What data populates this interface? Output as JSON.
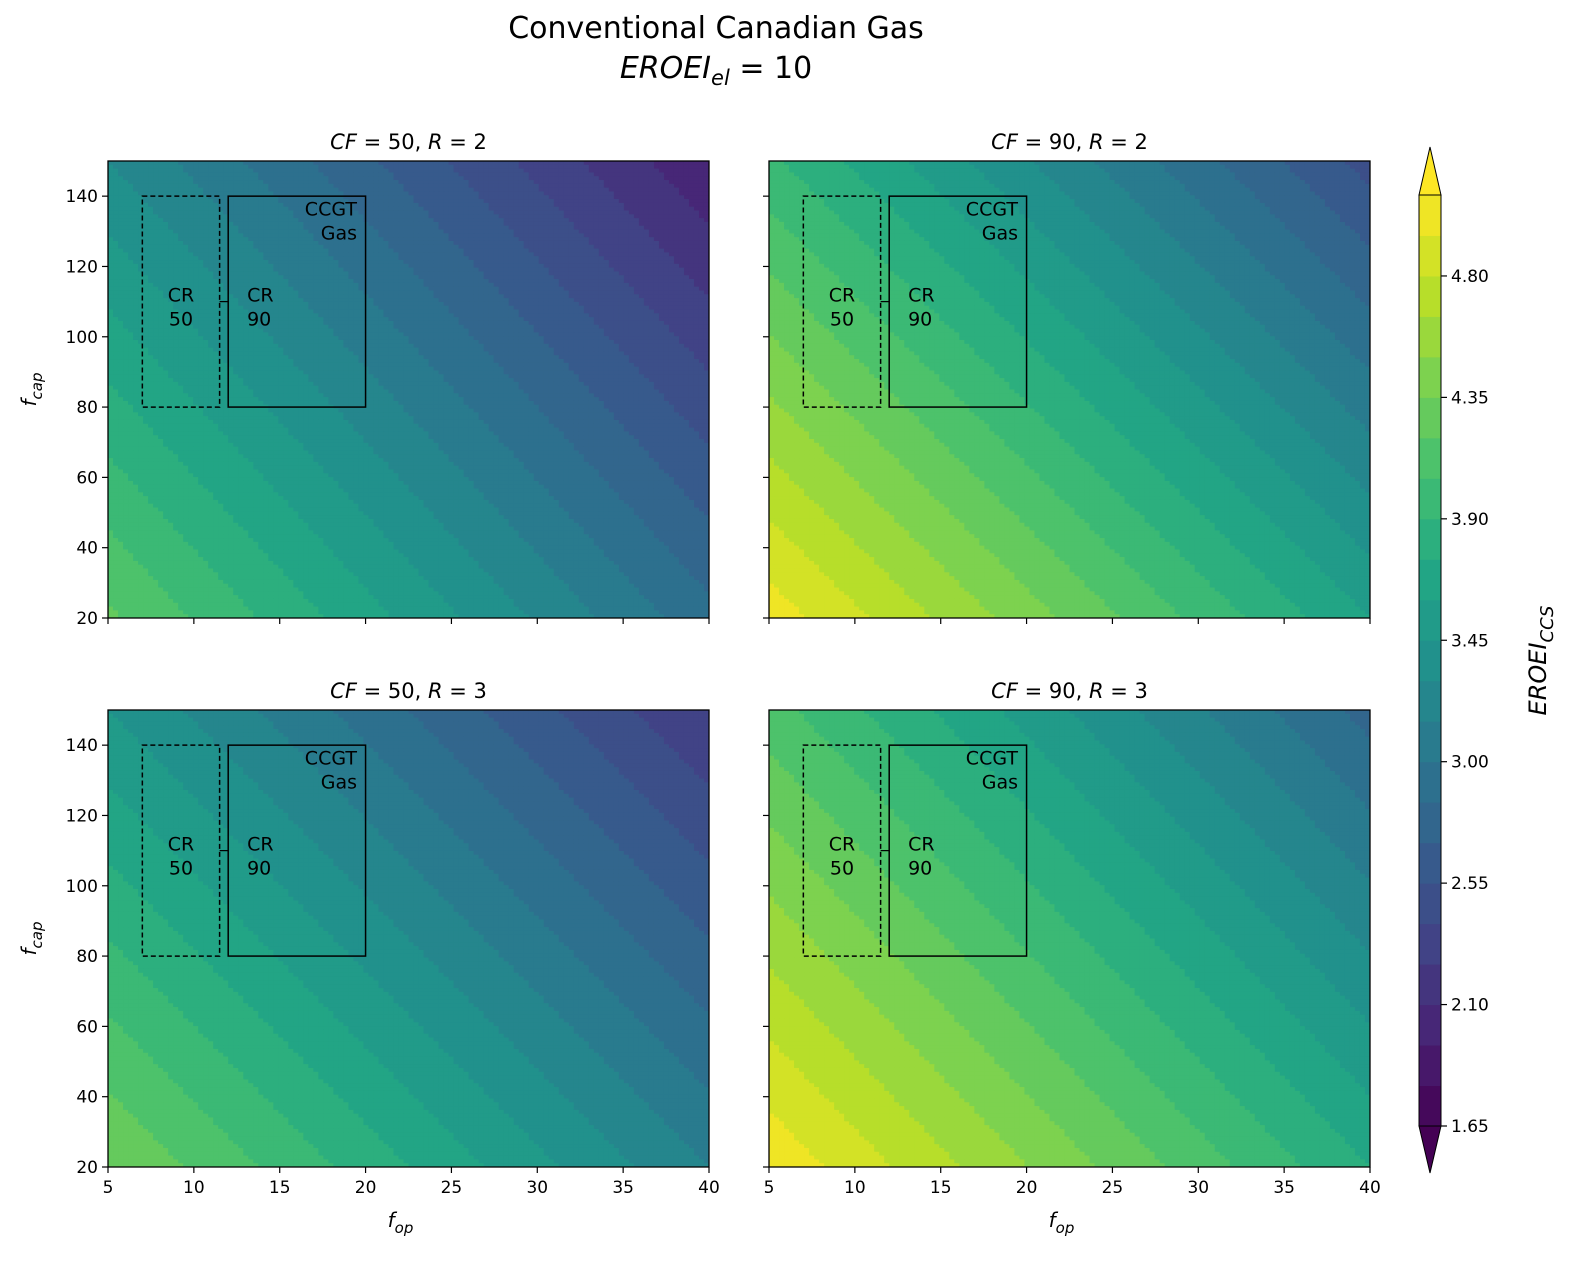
{
  "figure": {
    "title": "Conventional Canadian Gas",
    "subtitle_math": "EROEI",
    "subtitle_sub": "el",
    "subtitle_rest": " = 10"
  },
  "chart_data": {
    "type": "heatmap",
    "title": "Conventional Canadian Gas",
    "subtitle": "EROEI_el = 10",
    "xlabel": {
      "main": "f",
      "sub": "op"
    },
    "ylabel": {
      "main": "f",
      "sub": "cap"
    },
    "xlim": [
      5,
      40
    ],
    "ylim": [
      20,
      150
    ],
    "xticks": [
      5,
      10,
      15,
      20,
      25,
      30,
      35,
      40
    ],
    "yticks": [
      20,
      40,
      60,
      80,
      100,
      120,
      140
    ],
    "colorbar": {
      "label": {
        "main": "EROEI",
        "sub": "CCS"
      },
      "ticks": [
        "1.65",
        "2.10",
        "2.55",
        "3.00",
        "3.45",
        "3.90",
        "4.35",
        "4.80"
      ],
      "min": 1.65,
      "max": 5.1,
      "level_step": 0.15,
      "extend": "both",
      "colormap": "viridis"
    },
    "panels": [
      {
        "title_parts": [
          "CF",
          " = 50, ",
          "R",
          " = 2"
        ],
        "cf": 50,
        "r": 2,
        "corner_values": {
          "x5_y20": 4.23,
          "x40_y20": 2.9,
          "x5_y150": 3.3,
          "x40_y150": 1.97
        }
      },
      {
        "title_parts": [
          "CF",
          " = 90, ",
          "R",
          " = 2"
        ],
        "cf": 90,
        "r": 2,
        "corner_values": {
          "x5_y20": 5.04,
          "x40_y20": 3.6,
          "x5_y150": 3.93,
          "x40_y150": 2.49
        }
      },
      {
        "title_parts": [
          "CF",
          " = 50, ",
          "R",
          " = 3"
        ],
        "cf": 50,
        "r": 3,
        "corner_values": {
          "x5_y20": 4.35,
          "x40_y20": 3.15,
          "x5_y150": 3.45,
          "x40_y150": 2.25
        }
      },
      {
        "title_parts": [
          "CF",
          " = 90, ",
          "R",
          " = 3"
        ],
        "cf": 90,
        "r": 3,
        "corner_values": {
          "x5_y20": 5.07,
          "x40_y20": 3.75,
          "x5_y150": 4.11,
          "x40_y150": 2.79
        }
      }
    ],
    "annotations": [
      {
        "label_lines": [
          "CR",
          "50"
        ],
        "style": "dashed",
        "x_range": [
          7,
          11.5
        ],
        "y_range": [
          80,
          140
        ]
      },
      {
        "label_lines": [
          "CR",
          "90"
        ],
        "style": "solid",
        "x_range": [
          12,
          20
        ],
        "y_range": [
          80,
          140
        ]
      },
      {
        "label_lines": [
          "CCGT",
          "Gas"
        ],
        "style": "none"
      }
    ]
  }
}
